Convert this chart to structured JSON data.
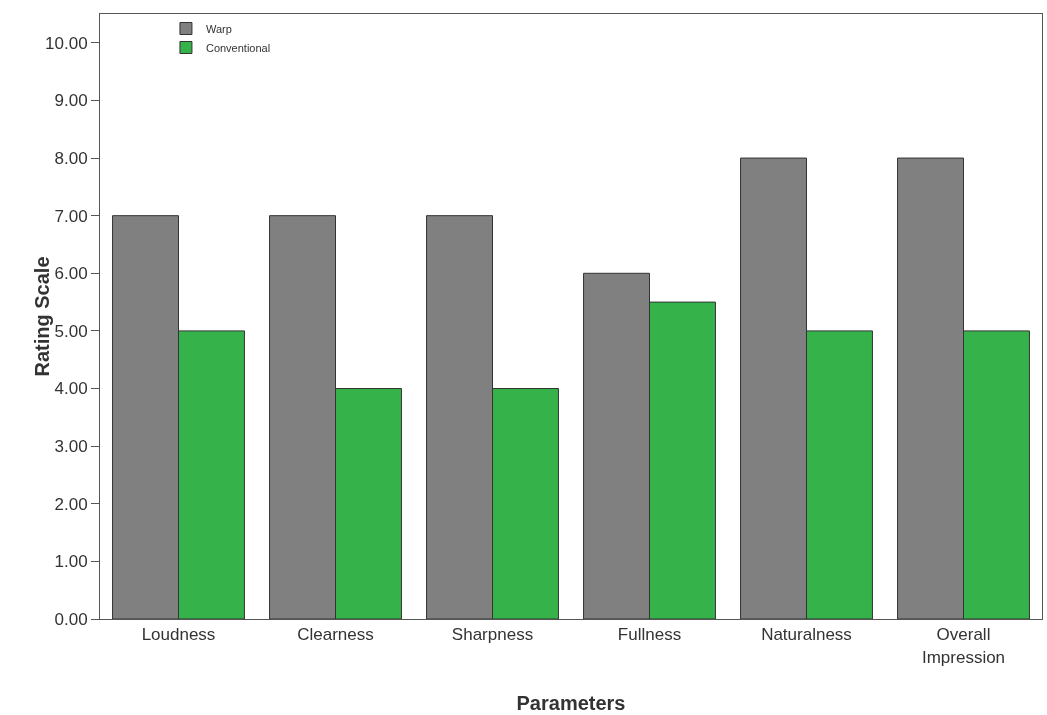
{
  "chart_data": {
    "type": "bar",
    "xlabel": "Parameters",
    "ylabel": "Rating Scale",
    "categories": [
      "Loudness",
      "Clearness",
      "Sharpness",
      "Fullness",
      "Naturalness",
      "Overall Impression"
    ],
    "series": [
      {
        "name": "Warp",
        "color": "#808080",
        "values": [
          7,
          7,
          7,
          6,
          8,
          8
        ]
      },
      {
        "name": "Conventional",
        "color": "#35b34a",
        "values": [
          5,
          4,
          4,
          5.5,
          5,
          5
        ]
      }
    ],
    "ylim": [
      0,
      10.5
    ],
    "yticks": [
      {
        "value": 0,
        "label": "0.00"
      },
      {
        "value": 1,
        "label": "1.00"
      },
      {
        "value": 2,
        "label": "2.00"
      },
      {
        "value": 3,
        "label": "3.00"
      },
      {
        "value": 4,
        "label": "4.00"
      },
      {
        "value": 5,
        "label": "5.00"
      },
      {
        "value": 6,
        "label": "6.00"
      },
      {
        "value": 7,
        "label": "7.00"
      },
      {
        "value": 8,
        "label": "8.00"
      },
      {
        "value": 9,
        "label": "9.00"
      },
      {
        "value": 10,
        "label": "10.00"
      }
    ],
    "grid": false,
    "legend": "top left"
  }
}
